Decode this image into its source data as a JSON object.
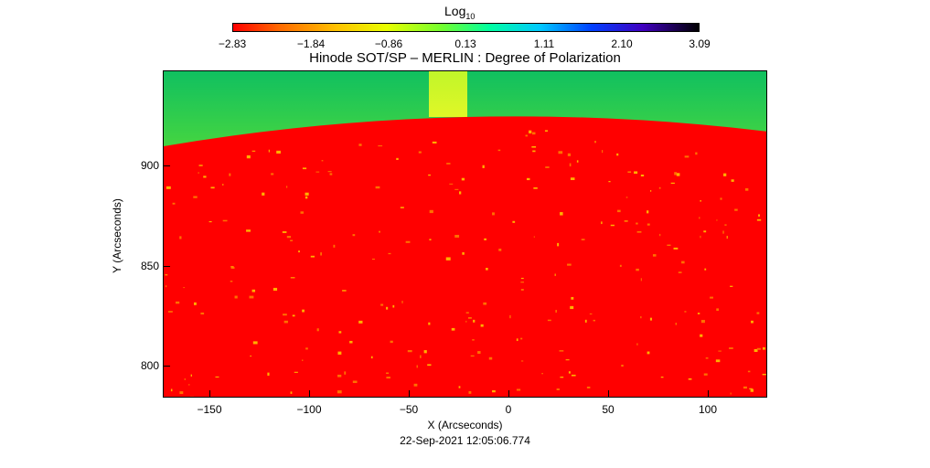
{
  "colorbar": {
    "title": "Log",
    "title_sub": "10",
    "ticks": [
      "−2.83",
      "−1.84",
      "−0.86",
      "0.13",
      "1.11",
      "2.10",
      "3.09"
    ]
  },
  "title": "Hinode SOT/SP – MERLIN : Degree of Polarization",
  "axes": {
    "xlabel": "X (Arcseconds)",
    "ylabel": "Y (Arcseconds)",
    "xticks": [
      "−150",
      "−100",
      "−50",
      "0",
      "50",
      "100"
    ],
    "yticks": [
      "900",
      "850",
      "800"
    ]
  },
  "timestamp": "22-Sep-2021 12:05:06.774",
  "colors": {
    "disk": "#ff0000",
    "limb": "#e8ff00",
    "sky": "#30e040"
  }
}
